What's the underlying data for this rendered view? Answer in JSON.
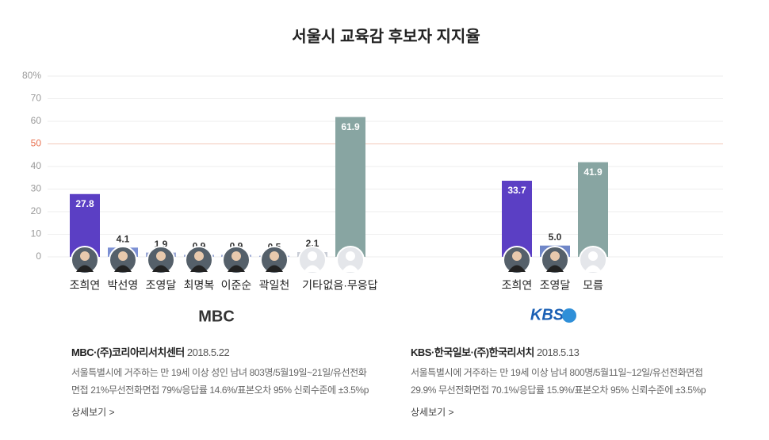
{
  "chart_data": {
    "type": "bar",
    "title": "서울시 교육감 후보자 지지율",
    "ylim": [
      0,
      80
    ],
    "yticks": [
      0,
      10,
      20,
      30,
      40,
      50,
      60,
      70,
      {
        "value": 80,
        "label": "80%"
      }
    ],
    "grid": true,
    "reference_line": 50,
    "reference_color": "#e8704f",
    "groups": [
      {
        "logo": "MBC",
        "categories": [
          "조희연",
          "박선영",
          "조영달",
          "최명복",
          "이준순",
          "곽일천",
          "기타",
          "없음·무응답"
        ],
        "values": [
          27.8,
          4.1,
          1.9,
          0.9,
          0.9,
          0.5,
          2.1,
          61.9
        ],
        "colors": [
          "#5b3fc4",
          "#7b8fd3",
          "#9aa8d4",
          "#9aa8d4",
          "#9aa8d4",
          "#9aa8d4",
          "#c9cdd6",
          "#88a5a2"
        ],
        "source": "MBC·(주)코리아리서치센터",
        "date": "2018.5.22",
        "description": "서울특별시에 거주하는 만 19세 이상 성인 남녀 803명/5월19일~21일/유선전화면접 21%무선전화면접 79%/응답률 14.6%/표본오차 95% 신뢰수준에 ±3.5%p",
        "link": "상세보기 >"
      },
      {
        "logo": "KBS",
        "categories": [
          "조희연",
          "조영달",
          "모름"
        ],
        "values": [
          33.7,
          5.0,
          41.9
        ],
        "value_labels": [
          "33.7",
          "5.0",
          "41.9"
        ],
        "colors": [
          "#5b3fc4",
          "#7087c8",
          "#88a5a2"
        ],
        "source": "KBS·한국일보·(주)한국리서치",
        "date": "2018.5.13",
        "description": "서울특별시에 거주하는 만 19세 이상 남녀 800명/5월11일~12일/유선전화면접 29.9% 무선전화면접 70.1%/응답률 15.9%/표본오차 95% 신뢰수준에 ±3.5%p",
        "link": "상세보기 >"
      }
    ]
  }
}
